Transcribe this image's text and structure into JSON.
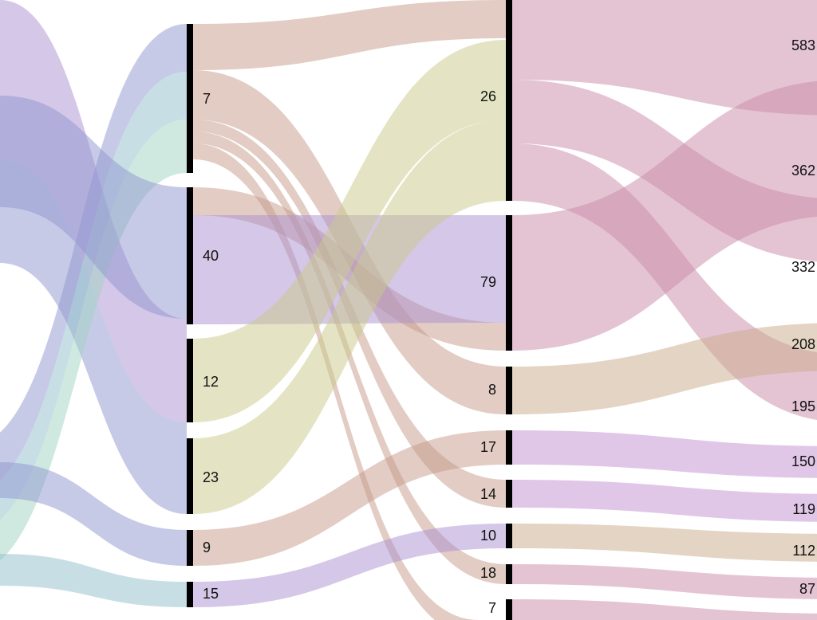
{
  "columns": [
    {
      "nodes": [
        {
          "label": 7
        },
        {
          "label": 40
        },
        {
          "label": 12
        },
        {
          "label": 23
        },
        {
          "label": 9
        },
        {
          "label": 15
        }
      ]
    },
    {
      "nodes": [
        {
          "label": 26
        },
        {
          "label": 79
        },
        {
          "label": 8
        },
        {
          "label": 17
        },
        {
          "label": 14
        },
        {
          "label": 10
        },
        {
          "label": 18
        },
        {
          "label": 7
        }
      ]
    },
    {
      "nodes": [
        {
          "label": 583
        },
        {
          "label": 362
        },
        {
          "label": 332
        },
        {
          "label": 208
        },
        {
          "label": 195
        },
        {
          "label": 150
        },
        {
          "label": 119
        },
        {
          "label": 112
        },
        {
          "label": 87
        }
      ]
    }
  ]
}
